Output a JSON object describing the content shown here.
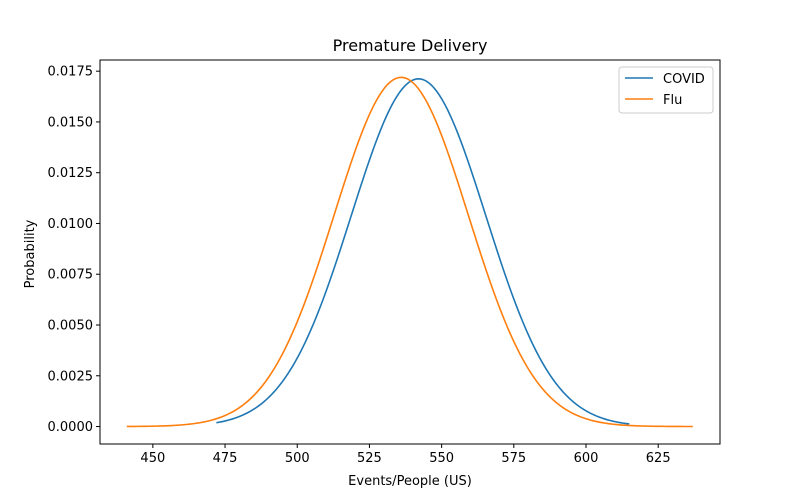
{
  "chart_data": {
    "type": "line",
    "title": "Premature Delivery",
    "xlabel": "Events/People (US)",
    "ylabel": "Probability",
    "xlim": [
      431.7,
      646.4
    ],
    "ylim": [
      -0.00086,
      0.01805
    ],
    "xticks": [
      450,
      475,
      500,
      525,
      550,
      575,
      600,
      625
    ],
    "xtick_labels": [
      "450",
      "475",
      "500",
      "525",
      "550",
      "575",
      "600",
      "625"
    ],
    "yticks": [
      0.0,
      0.0025,
      0.005,
      0.0075,
      0.01,
      0.0125,
      0.015,
      0.0175
    ],
    "ytick_labels": [
      "0.0000",
      "0.0025",
      "0.0050",
      "0.0075",
      "0.0100",
      "0.0125",
      "0.0150",
      "0.0175"
    ],
    "grid": false,
    "legend_position": "top-right",
    "series": [
      {
        "name": "COVID",
        "color": "#1f77b4",
        "mean": 542,
        "sd": 23.3,
        "x_range": [
          472,
          615
        ]
      },
      {
        "name": "Flu",
        "color": "#ff7f0e",
        "mean": 536,
        "sd": 23.2,
        "x_range": [
          441,
          637
        ]
      }
    ]
  }
}
